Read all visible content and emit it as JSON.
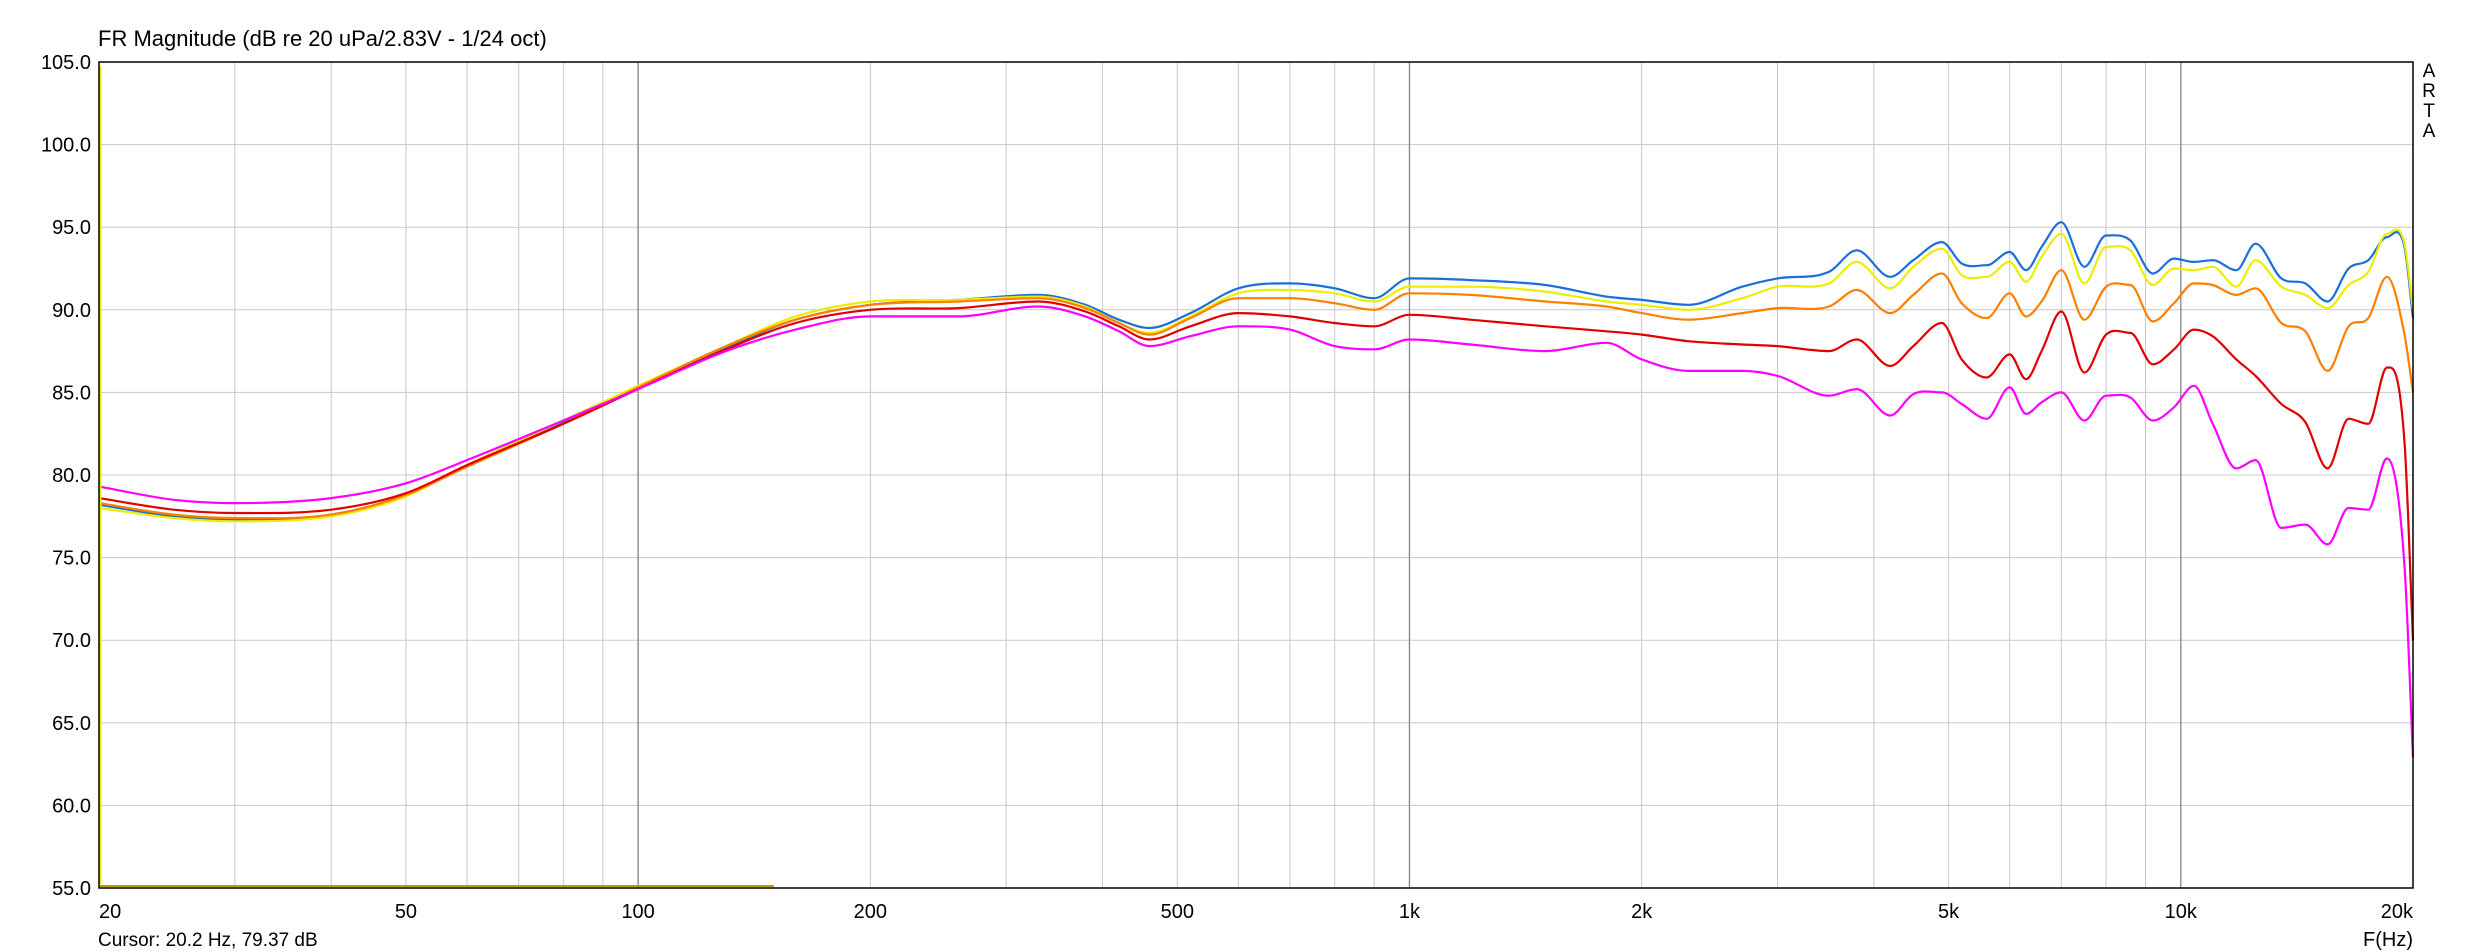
{
  "window": {
    "title": "FR Magnitude (dB re 20 uPa/2.83V - 1/24 oct)",
    "cursor_readout": "Cursor: 20.2 Hz, 79.37 dB",
    "watermark_letters": [
      "A",
      "R",
      "T",
      "A"
    ]
  },
  "chart_data": {
    "type": "line",
    "title": "FR Magnitude (dB re 20 uPa/2.83V - 1/24 oct)",
    "xlabel": "F(Hz)",
    "ylabel": "",
    "xscale": "log",
    "xlim": [
      20,
      20000
    ],
    "ylim": [
      55,
      105
    ],
    "grid": true,
    "legend": "none",
    "x_ticks": [
      {
        "value": 20,
        "label": "20"
      },
      {
        "value": 50,
        "label": "50"
      },
      {
        "value": 100,
        "label": "100"
      },
      {
        "value": 200,
        "label": "200"
      },
      {
        "value": 500,
        "label": "500"
      },
      {
        "value": 1000,
        "label": "1k"
      },
      {
        "value": 2000,
        "label": "2k"
      },
      {
        "value": 5000,
        "label": "5k"
      },
      {
        "value": 10000,
        "label": "10k"
      },
      {
        "value": 20000,
        "label": "20k"
      }
    ],
    "y_ticks": [
      "105.0",
      "100.0",
      "95.0",
      "90.0",
      "85.0",
      "80.0",
      "75.0",
      "70.0",
      "65.0",
      "60.0",
      "55.0"
    ],
    "colors": {
      "blue": "#1a6fd8",
      "yellow": "#eded00",
      "orange": "#ff7f00",
      "red": "#e00000",
      "magenta": "#ff00ff",
      "gridlines": "#c8c8c8",
      "major_gridlines": "#8c8c8c"
    },
    "series": [
      {
        "color": "#1a6fd8",
        "x": [
          20,
          25,
          30,
          40,
          50,
          60,
          80,
          100,
          130,
          160,
          200,
          260,
          330,
          380,
          420,
          460,
          520,
          600,
          700,
          800,
          900,
          1000,
          1200,
          1500,
          1800,
          2000,
          2300,
          2700,
          3000,
          3500,
          3800,
          4200,
          4500,
          4900,
          5200,
          5600,
          6000,
          6300,
          6600,
          7000,
          7500,
          8000,
          8600,
          9200,
          9800,
          10400,
          11000,
          11800,
          12500,
          13500,
          14500,
          15500,
          16500,
          17500,
          18500,
          19500,
          20000
        ],
        "y": [
          78.2,
          77.5,
          77.3,
          77.6,
          78.8,
          80.6,
          83.2,
          85.3,
          87.7,
          89.4,
          90.3,
          90.6,
          90.9,
          90.3,
          89.4,
          88.9,
          89.8,
          91.3,
          91.6,
          91.3,
          90.7,
          91.9,
          91.8,
          91.5,
          90.8,
          90.6,
          90.3,
          91.4,
          91.9,
          92.3,
          93.6,
          92.0,
          93.0,
          94.1,
          92.8,
          92.7,
          93.5,
          92.4,
          93.8,
          95.3,
          92.6,
          94.5,
          94.2,
          92.2,
          93.1,
          92.9,
          93.0,
          92.4,
          94.0,
          91.9,
          91.6,
          90.5,
          92.5,
          93.0,
          94.4,
          93.8,
          89.5
        ]
      },
      {
        "color": "#eded00",
        "x": [
          20,
          25,
          30,
          40,
          50,
          60,
          80,
          100,
          130,
          160,
          200,
          260,
          330,
          380,
          420,
          460,
          520,
          600,
          700,
          800,
          900,
          1000,
          1200,
          1500,
          1800,
          2000,
          2300,
          2700,
          3000,
          3500,
          3800,
          4200,
          4500,
          4900,
          5200,
          5600,
          6000,
          6300,
          6600,
          7000,
          7500,
          8000,
          8600,
          9200,
          9800,
          10400,
          11000,
          11800,
          12500,
          13500,
          14500,
          15500,
          16500,
          17500,
          18500,
          19500,
          20000
        ],
        "y": [
          78.0,
          77.4,
          77.2,
          77.5,
          78.7,
          80.6,
          83.3,
          85.4,
          87.8,
          89.6,
          90.5,
          90.6,
          90.8,
          90.2,
          89.2,
          88.6,
          89.6,
          91.0,
          91.2,
          91.0,
          90.5,
          91.4,
          91.4,
          91.1,
          90.5,
          90.3,
          90.0,
          90.7,
          91.4,
          91.6,
          92.9,
          91.3,
          92.6,
          93.7,
          92.1,
          92.0,
          92.9,
          91.7,
          93.2,
          94.6,
          91.6,
          93.8,
          93.6,
          91.5,
          92.5,
          92.4,
          92.6,
          91.4,
          93.0,
          91.4,
          90.9,
          90.1,
          91.5,
          92.3,
          94.6,
          94.0,
          90.0
        ]
      },
      {
        "color": "#ff7f00",
        "x": [
          20,
          25,
          30,
          40,
          50,
          60,
          80,
          100,
          130,
          160,
          200,
          260,
          330,
          380,
          420,
          460,
          520,
          600,
          700,
          800,
          900,
          1000,
          1200,
          1500,
          1800,
          2000,
          2300,
          2700,
          3000,
          3500,
          3800,
          4200,
          4500,
          4900,
          5200,
          5600,
          6000,
          6300,
          6600,
          7000,
          7500,
          8000,
          8600,
          9200,
          9800,
          10400,
          11000,
          11800,
          12500,
          13500,
          14500,
          15500,
          16500,
          17500,
          18500,
          19500,
          20000
        ],
        "y": [
          78.3,
          77.6,
          77.4,
          77.6,
          78.8,
          80.5,
          83.1,
          85.3,
          87.8,
          89.4,
          90.3,
          90.5,
          90.7,
          90.1,
          89.2,
          88.5,
          89.5,
          90.7,
          90.7,
          90.4,
          90.0,
          91.0,
          90.9,
          90.5,
          90.2,
          89.8,
          89.4,
          89.8,
          90.1,
          90.2,
          91.2,
          89.8,
          90.9,
          92.2,
          90.4,
          89.5,
          91.0,
          89.6,
          90.5,
          92.4,
          89.4,
          91.4,
          91.5,
          89.3,
          90.4,
          91.6,
          91.5,
          90.9,
          91.3,
          89.2,
          88.7,
          86.3,
          89.0,
          89.5,
          92.0,
          88.5,
          85.0
        ]
      },
      {
        "color": "#e00000",
        "x": [
          20,
          25,
          30,
          40,
          50,
          60,
          80,
          100,
          130,
          160,
          200,
          260,
          330,
          380,
          420,
          460,
          520,
          600,
          700,
          800,
          900,
          1000,
          1200,
          1500,
          1800,
          2000,
          2300,
          2700,
          3000,
          3500,
          3800,
          4200,
          4500,
          4900,
          5200,
          5600,
          6000,
          6300,
          6600,
          7000,
          7500,
          8000,
          8600,
          9200,
          9800,
          10400,
          11000,
          11800,
          12500,
          13500,
          14500,
          15500,
          16500,
          17500,
          18500,
          19500,
          20000
        ],
        "y": [
          78.6,
          77.9,
          77.7,
          77.9,
          78.9,
          80.6,
          83.1,
          85.2,
          87.6,
          89.2,
          90.0,
          90.1,
          90.5,
          89.9,
          89.0,
          88.2,
          89.0,
          89.8,
          89.6,
          89.2,
          89.0,
          89.7,
          89.4,
          89.0,
          88.7,
          88.5,
          88.1,
          87.9,
          87.8,
          87.5,
          88.2,
          86.6,
          87.8,
          89.2,
          87.0,
          85.9,
          87.3,
          85.8,
          87.5,
          89.9,
          86.2,
          88.5,
          88.6,
          86.7,
          87.6,
          88.8,
          88.4,
          87.0,
          86.0,
          84.3,
          83.2,
          80.4,
          83.4,
          83.1,
          86.5,
          82.0,
          70.0
        ]
      },
      {
        "color": "#ff00ff",
        "x": [
          20,
          25,
          30,
          40,
          50,
          60,
          80,
          100,
          130,
          160,
          200,
          260,
          330,
          380,
          420,
          460,
          520,
          600,
          700,
          800,
          900,
          1000,
          1200,
          1500,
          1800,
          2000,
          2300,
          2700,
          3000,
          3500,
          3800,
          4200,
          4500,
          4900,
          5200,
          5600,
          6000,
          6300,
          6600,
          7000,
          7500,
          8000,
          8600,
          9200,
          9800,
          10400,
          11000,
          11800,
          12500,
          13500,
          14500,
          15500,
          16500,
          17500,
          18500,
          19500,
          20000
        ],
        "y": [
          79.3,
          78.5,
          78.3,
          78.6,
          79.5,
          80.9,
          83.3,
          85.2,
          87.5,
          88.8,
          89.6,
          89.6,
          90.2,
          89.6,
          88.7,
          87.8,
          88.4,
          89.0,
          88.8,
          87.8,
          87.6,
          88.2,
          87.9,
          87.5,
          88.0,
          87.0,
          86.3,
          86.3,
          86.0,
          84.8,
          85.2,
          83.6,
          84.9,
          85.0,
          84.3,
          83.4,
          85.3,
          83.7,
          84.4,
          85.0,
          83.3,
          84.8,
          84.7,
          83.3,
          84.1,
          85.4,
          83.1,
          80.4,
          80.9,
          76.8,
          77.0,
          75.8,
          78.0,
          77.9,
          81.0,
          74.5,
          62.9
        ]
      }
    ]
  }
}
